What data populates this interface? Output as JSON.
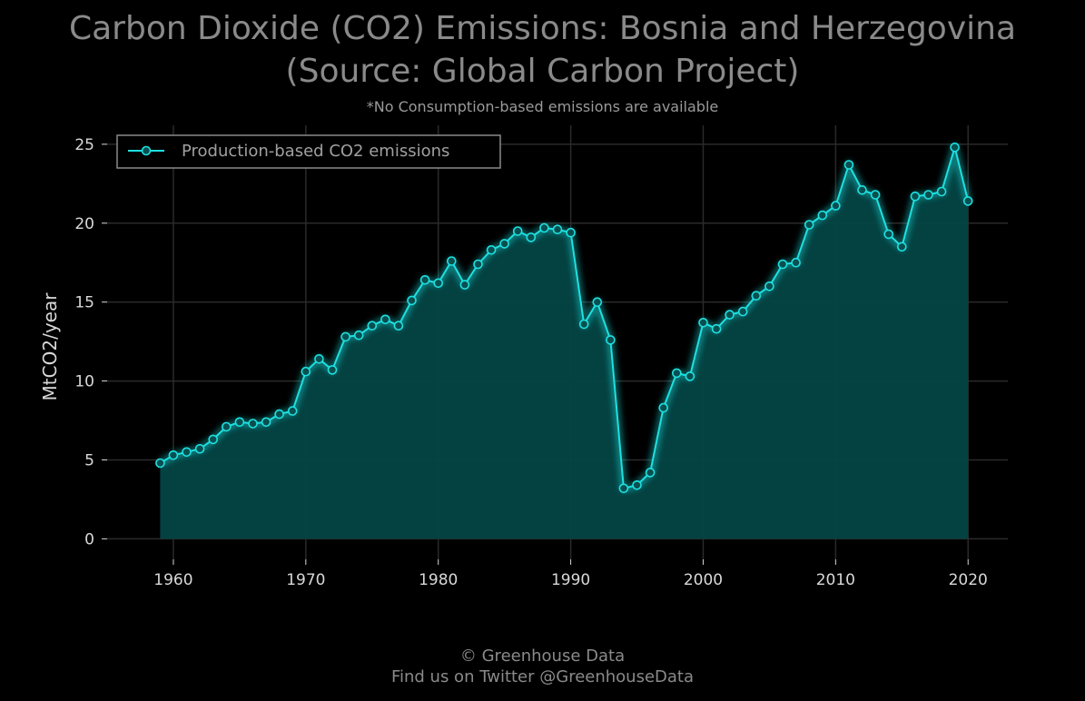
{
  "title_line1": "Carbon Dioxide (CO2) Emissions: Bosnia and Herzegovina",
  "title_line2": "(Source: Global Carbon Project)",
  "subtitle": "*No Consumption-based emissions are available",
  "footer_line1": "© Greenhouse Data",
  "footer_line2": "Find us on Twitter @GreenhouseData",
  "colors": {
    "background": "#000000",
    "line": "#1ee0e0",
    "fill": "#044545",
    "grid": "#2a2a2a",
    "text": "#d8d8d8",
    "title": "#8a8a8a"
  },
  "chart_data": {
    "type": "area",
    "ylabel": "MtCO2/year",
    "xlabel": "",
    "xlim": [
      1955,
      2023
    ],
    "ylim": [
      -1.3,
      26.2
    ],
    "xticks": [
      1960,
      1970,
      1980,
      1990,
      2000,
      2010,
      2020
    ],
    "yticks": [
      0,
      5,
      10,
      15,
      20,
      25
    ],
    "grid": true,
    "legend_position": "top-left",
    "series": [
      {
        "name": "Production-based CO2 emissions",
        "x": [
          1959,
          1960,
          1961,
          1962,
          1963,
          1964,
          1965,
          1966,
          1967,
          1968,
          1969,
          1970,
          1971,
          1972,
          1973,
          1974,
          1975,
          1976,
          1977,
          1978,
          1979,
          1980,
          1981,
          1982,
          1983,
          1984,
          1985,
          1986,
          1987,
          1988,
          1989,
          1990,
          1991,
          1992,
          1993,
          1994,
          1995,
          1996,
          1997,
          1998,
          1999,
          2000,
          2001,
          2002,
          2003,
          2004,
          2005,
          2006,
          2007,
          2008,
          2009,
          2010,
          2011,
          2012,
          2013,
          2014,
          2015,
          2016,
          2017,
          2018,
          2019,
          2020
        ],
        "values": [
          4.8,
          5.3,
          5.5,
          5.7,
          6.3,
          7.1,
          7.4,
          7.3,
          7.4,
          7.9,
          8.1,
          10.6,
          11.4,
          10.7,
          12.8,
          12.9,
          13.5,
          13.9,
          13.5,
          15.1,
          16.4,
          16.2,
          17.6,
          16.1,
          17.4,
          18.3,
          18.7,
          19.5,
          19.1,
          19.7,
          19.6,
          19.4,
          13.6,
          15.0,
          12.6,
          3.2,
          3.4,
          4.2,
          8.3,
          10.5,
          10.3,
          13.7,
          13.3,
          14.2,
          14.4,
          15.4,
          16.0,
          17.4,
          17.5,
          19.9,
          20.5,
          21.1,
          23.7,
          22.1,
          21.8,
          19.3,
          18.5,
          21.7,
          21.8,
          22.0,
          24.8,
          21.4
        ]
      }
    ]
  }
}
